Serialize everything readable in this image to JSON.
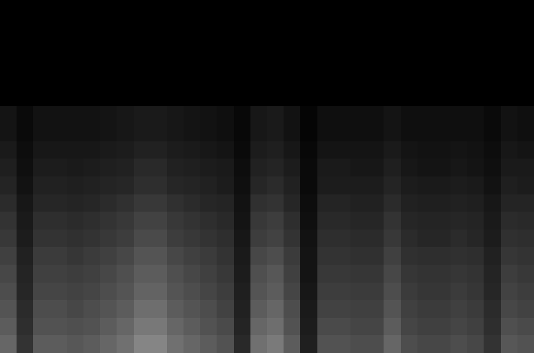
{
  "chart_data": {
    "type": "heatmap",
    "zlim": [
      0,
      100
    ],
    "tick_labels": false,
    "z": [
      [
        0,
        0,
        0,
        0,
        0,
        0,
        0,
        0,
        0,
        0,
        0,
        0,
        0,
        0,
        0,
        0,
        0,
        0,
        0,
        0,
        0,
        0,
        0,
        0,
        0,
        0,
        0,
        0,
        0,
        0,
        0,
        0
      ],
      [
        0,
        0,
        0,
        0,
        0,
        0,
        0,
        0,
        0,
        0,
        0,
        0,
        0,
        0,
        0,
        0,
        0,
        0,
        0,
        0,
        0,
        0,
        0,
        0,
        0,
        0,
        0,
        0,
        0,
        0,
        0,
        0
      ],
      [
        0,
        0,
        0,
        0,
        0,
        0,
        0,
        0,
        0,
        0,
        0,
        0,
        0,
        0,
        0,
        0,
        0,
        0,
        0,
        0,
        0,
        0,
        0,
        0,
        0,
        0,
        0,
        0,
        0,
        0,
        0,
        0
      ],
      [
        0,
        0,
        0,
        0,
        0,
        0,
        0,
        0,
        0,
        0,
        0,
        0,
        0,
        0,
        0,
        0,
        0,
        0,
        0,
        0,
        0,
        0,
        0,
        0,
        0,
        0,
        0,
        0,
        0,
        0,
        0,
        0
      ],
      [
        0,
        0,
        0,
        0,
        0,
        0,
        0,
        0,
        0,
        0,
        0,
        0,
        0,
        0,
        0,
        0,
        0,
        0,
        0,
        0,
        0,
        0,
        0,
        0,
        0,
        0,
        0,
        0,
        0,
        0,
        0,
        0
      ],
      [
        0,
        0,
        0,
        0,
        0,
        0,
        0,
        0,
        0,
        0,
        0,
        0,
        0,
        0,
        0,
        0,
        0,
        0,
        0,
        0,
        0,
        0,
        0,
        0,
        0,
        0,
        0,
        0,
        0,
        0,
        0,
        0
      ],
      [
        8,
        4,
        7,
        7,
        7,
        7,
        8,
        9,
        10,
        10,
        9,
        8,
        7,
        6,
        3,
        9,
        10,
        7,
        2,
        6,
        6,
        6,
        6,
        8,
        6,
        6,
        6,
        6,
        6,
        4,
        7,
        6
      ],
      [
        8,
        4,
        7,
        7,
        7,
        7,
        8,
        9,
        10,
        10,
        9,
        8,
        7,
        6,
        3,
        9,
        10,
        7,
        2,
        6,
        6,
        6,
        6,
        8,
        6,
        6,
        6,
        6,
        6,
        4,
        7,
        6
      ],
      [
        10,
        5,
        9,
        9,
        9,
        9,
        10,
        11,
        13,
        13,
        11,
        10,
        9,
        8,
        4,
        11,
        12,
        9,
        3,
        8,
        8,
        8,
        8,
        10,
        8,
        7,
        7,
        8,
        7,
        5,
        9,
        8
      ],
      [
        12,
        6,
        11,
        11,
        10,
        11,
        12,
        13,
        16,
        16,
        13,
        12,
        11,
        10,
        5,
        13,
        14,
        11,
        4,
        10,
        10,
        9,
        9,
        12,
        9,
        8,
        8,
        9,
        8,
        6,
        10,
        10
      ],
      [
        14,
        7,
        13,
        13,
        12,
        13,
        14,
        15,
        18,
        18,
        15,
        14,
        13,
        11,
        6,
        15,
        17,
        13,
        4,
        11,
        11,
        11,
        11,
        14,
        11,
        10,
        10,
        11,
        10,
        7,
        12,
        11
      ],
      [
        17,
        9,
        15,
        15,
        14,
        15,
        17,
        19,
        22,
        22,
        19,
        17,
        15,
        14,
        7,
        19,
        20,
        15,
        5,
        14,
        14,
        13,
        13,
        17,
        13,
        12,
        12,
        13,
        12,
        9,
        14,
        14
      ],
      [
        20,
        10,
        18,
        18,
        17,
        18,
        20,
        22,
        26,
        26,
        22,
        20,
        18,
        16,
        8,
        22,
        24,
        18,
        6,
        16,
        16,
        15,
        15,
        20,
        15,
        14,
        14,
        15,
        14,
        10,
        17,
        16
      ],
      [
        22,
        11,
        20,
        20,
        19,
        20,
        22,
        24,
        29,
        29,
        24,
        22,
        20,
        18,
        9,
        24,
        26,
        20,
        7,
        18,
        18,
        17,
        17,
        22,
        17,
        15,
        15,
        17,
        15,
        11,
        19,
        18
      ],
      [
        25,
        13,
        23,
        23,
        21,
        23,
        25,
        28,
        33,
        33,
        28,
        25,
        23,
        20,
        10,
        28,
        30,
        23,
        8,
        20,
        20,
        19,
        19,
        25,
        19,
        18,
        18,
        19,
        18,
        13,
        21,
        20
      ],
      [
        28,
        14,
        25,
        25,
        24,
        25,
        28,
        31,
        36,
        36,
        31,
        28,
        25,
        22,
        11,
        31,
        34,
        25,
        8,
        22,
        22,
        21,
        21,
        28,
        21,
        20,
        20,
        21,
        20,
        14,
        24,
        22
      ],
      [
        30,
        15,
        27,
        27,
        26,
        27,
        30,
        33,
        39,
        39,
        33,
        30,
        27,
        24,
        12,
        33,
        36,
        27,
        9,
        24,
        24,
        23,
        23,
        30,
        23,
        21,
        21,
        23,
        21,
        15,
        26,
        24
      ],
      [
        33,
        17,
        30,
        30,
        28,
        30,
        33,
        36,
        43,
        43,
        36,
        33,
        30,
        26,
        13,
        36,
        40,
        30,
        10,
        26,
        26,
        25,
        25,
        33,
        25,
        23,
        23,
        25,
        23,
        17,
        28,
        26
      ],
      [
        36,
        18,
        32,
        32,
        31,
        32,
        36,
        40,
        47,
        47,
        40,
        36,
        32,
        29,
        14,
        40,
        43,
        32,
        11,
        29,
        29,
        27,
        27,
        36,
        27,
        25,
        25,
        27,
        25,
        18,
        31,
        29
      ],
      [
        40,
        20,
        36,
        36,
        34,
        36,
        40,
        44,
        52,
        52,
        44,
        40,
        36,
        32,
        16,
        44,
        48,
        36,
        12,
        32,
        32,
        30,
        30,
        40,
        30,
        28,
        28,
        30,
        28,
        20,
        34,
        32
      ]
    ]
  }
}
